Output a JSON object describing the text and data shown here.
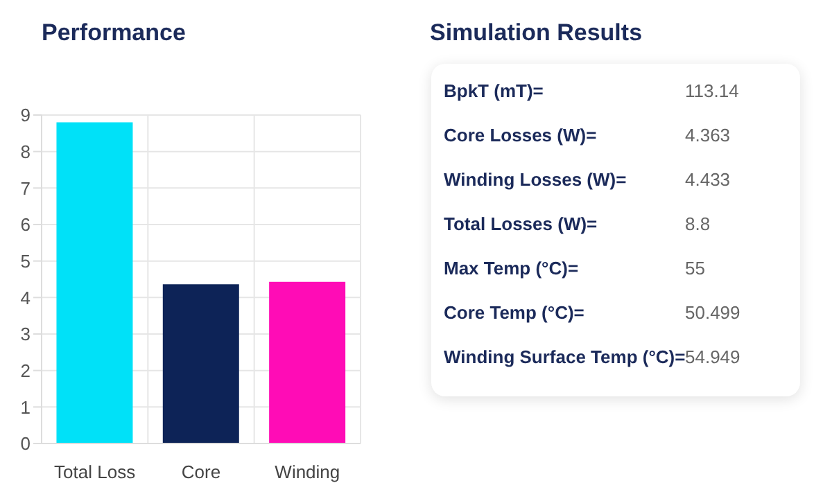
{
  "chart_data": [
    {
      "type": "bar",
      "title": "Performance",
      "categories": [
        "Total Loss",
        "Core",
        "Winding"
      ],
      "values": [
        8.8,
        4.36,
        4.43
      ],
      "colors": [
        "#00e1f8",
        "#0d2357",
        "#ff0cb6"
      ],
      "ylim": [
        0,
        9
      ],
      "yticks": [
        0,
        1,
        2,
        3,
        4,
        5,
        6,
        7,
        8,
        9
      ],
      "grid": true
    },
    {
      "type": "other",
      "title": "Simulation Results",
      "categories": [
        "BpkT (mT)=",
        "Core Losses (W)=",
        "Winding Losses (W)=",
        "Total Losses (W)=",
        "Max Temp (°C)=",
        "Core Temp (°C)=",
        "Winding Surface Temp (°C)="
      ],
      "values": [
        113.14,
        4.363,
        4.433,
        8.8,
        55,
        50.499,
        54.949
      ],
      "data_labels": true
    }
  ]
}
